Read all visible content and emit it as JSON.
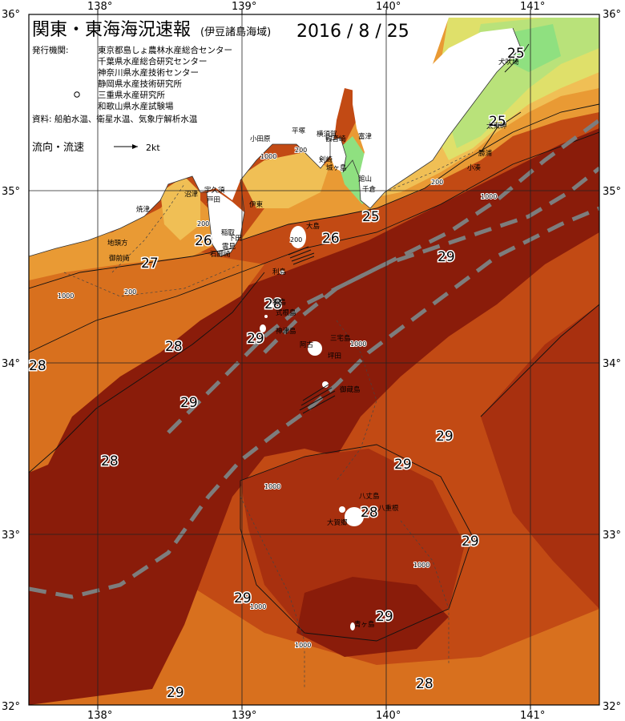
{
  "title": "関東・東海海況速報",
  "subtitle": "(伊豆諸島海域)",
  "date": "2016 / 8 / 25",
  "agencies_label": "発行機関:",
  "agencies": [
    "東京都島しょ農林水産総合センター",
    "千葉県水産総合研究センター",
    "神奈川県水産技術センター",
    "静岡県水産技術研究所",
    "三重県水産研究所",
    "和歌山県水産試験場"
  ],
  "data_sources": "資料: 船舶水温、衛星水温、気象庁解析水温",
  "legend": {
    "label": "流向・流速",
    "scale": "2kt"
  },
  "axes": {
    "longitudes": [
      "138°",
      "139°",
      "140°",
      "141°"
    ],
    "latitudes": [
      "36°",
      "35°",
      "34°",
      "33°",
      "32°"
    ]
  },
  "temperature_labels": [
    "25",
    "25",
    "25",
    "26",
    "26",
    "27",
    "28",
    "28",
    "28",
    "28",
    "28",
    "28",
    "29",
    "29",
    "29",
    "29",
    "29",
    "29",
    "29",
    "29",
    "29"
  ],
  "depth_labels": [
    "200",
    "200",
    "200",
    "200",
    "200",
    "1000",
    "1000",
    "1000",
    "1000",
    "1000",
    "1000",
    "1000",
    "1000"
  ],
  "place_names": [
    "犬吠埼",
    "太東岬",
    "勝浦",
    "小湊",
    "館山",
    "千倉",
    "富津",
    "観音崎",
    "横須賀",
    "剣崎",
    "城ヶ島",
    "平塚",
    "小田原",
    "伊東",
    "稲取",
    "下田",
    "石廊崎",
    "雲見",
    "宇久須",
    "戸田",
    "沼津",
    "焼津",
    "地頭方",
    "御前崎",
    "大島",
    "利島",
    "新島",
    "式根島",
    "神津島",
    "三宅島",
    "御蔵島",
    "坪田",
    "阿古",
    "八丈島",
    "八重根",
    "大賀郷",
    "青ヶ島"
  ],
  "colors": {
    "warm_29": "#8a1c0a",
    "warm_28": "#a8300f",
    "mid_28": "#c24a14",
    "mid_27": "#d8701e",
    "cool_26": "#e99a34",
    "cool_25": "#f0bf55",
    "coastal_24": "#dfe06a",
    "coastal_23": "#b9e27a",
    "cold_22": "#8fe080",
    "kuroshio_axis": "#7d7d7d",
    "land": "#ffffff"
  }
}
